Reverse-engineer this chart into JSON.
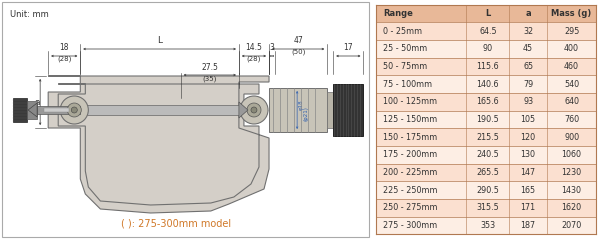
{
  "unit_label": "Unit: mm",
  "caption": "( ): 275-300mm model",
  "caption_color": "#d07828",
  "table_header_bg": "#e8b898",
  "table_row_bg1": "#fbe0d0",
  "table_row_bg2": "#fdeee4",
  "table_border_color": "#b07850",
  "table_header_text": "#333333",
  "table_text_color": "#333333",
  "table_header": [
    "Range",
    "L",
    "a",
    "Mass (g)"
  ],
  "table_data": [
    [
      "0 - 25mm",
      "64.5",
      "32",
      "295"
    ],
    [
      "25 - 50mm",
      "90",
      "45",
      "400"
    ],
    [
      "50 - 75mm",
      "115.6",
      "65",
      "460"
    ],
    [
      "75 - 100mm",
      "140.6",
      "79",
      "540"
    ],
    [
      "100 - 125mm",
      "165.6",
      "93",
      "640"
    ],
    [
      "125 - 150mm",
      "190.5",
      "105",
      "760"
    ],
    [
      "150 - 175mm",
      "215.5",
      "120",
      "900"
    ],
    [
      "175 - 200mm",
      "240.5",
      "130",
      "1060"
    ],
    [
      "200 - 225mm",
      "265.5",
      "147",
      "1230"
    ],
    [
      "225 - 250mm",
      "290.5",
      "165",
      "1430"
    ],
    [
      "250 - 275mm",
      "315.5",
      "171",
      "1620"
    ],
    [
      "275 - 300mm",
      "353",
      "187",
      "2070"
    ]
  ],
  "fig_width": 6.01,
  "fig_height": 2.39,
  "dpi": 100,
  "bg_color": "#ffffff",
  "frame_face": "#d4cfc8",
  "frame_edge": "#707070",
  "dim_color": "#333333",
  "blue_dim": "#3060b0",
  "dim_fs": 5.5,
  "caption_fs": 7.0,
  "unit_fs": 6.0
}
